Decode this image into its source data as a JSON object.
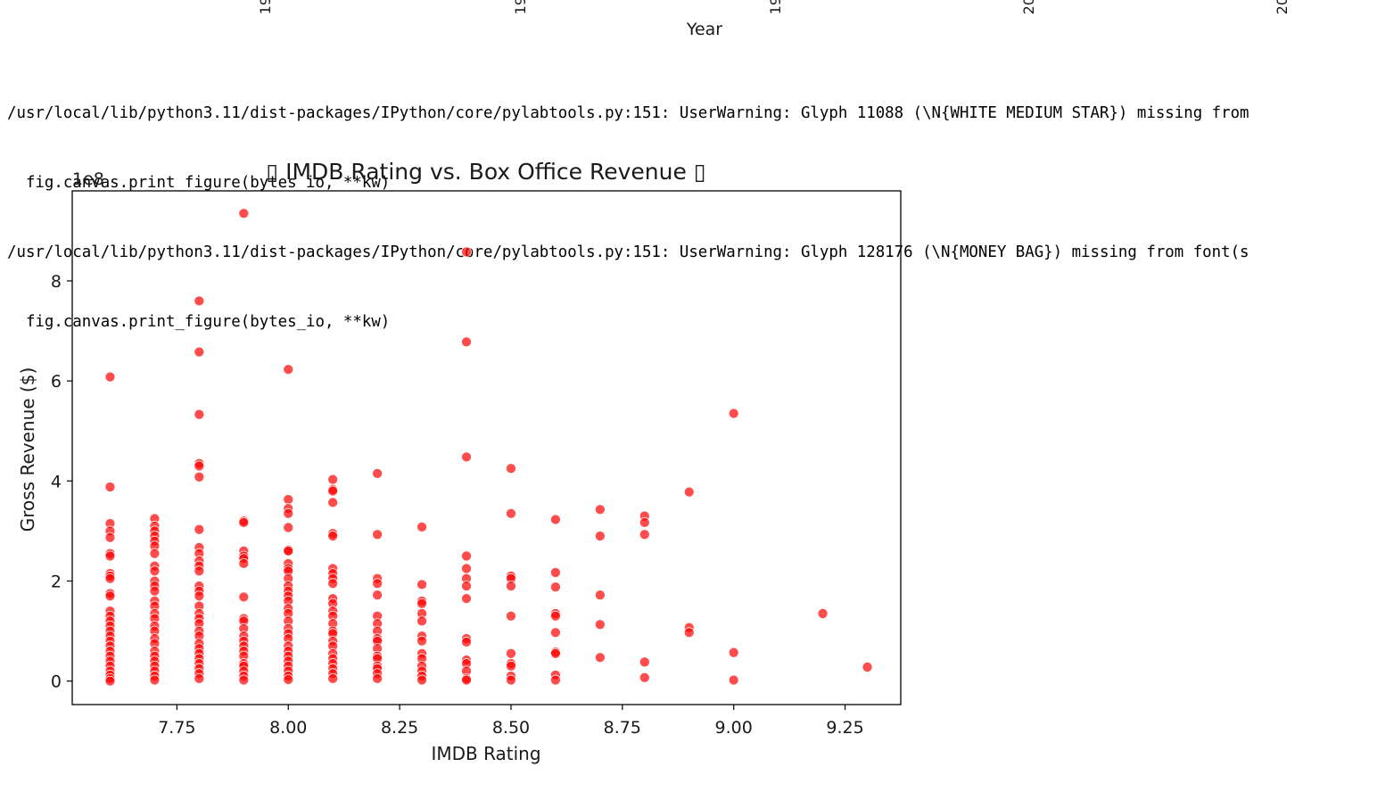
{
  "previous_output": {
    "x_tick_labels": [
      "19",
      "19",
      "19",
      "20",
      "20"
    ],
    "x_label": "Year"
  },
  "console": {
    "lines": [
      "/usr/local/lib/python3.11/dist-packages/IPython/core/pylabtools.py:151: UserWarning: Glyph 11088 (\\N{WHITE MEDIUM STAR}) missing from",
      "  fig.canvas.print_figure(bytes_io, **kw)",
      "/usr/local/lib/python3.11/dist-packages/IPython/core/pylabtools.py:151: UserWarning: Glyph 128176 (\\N{MONEY BAG}) missing from font(s",
      "  fig.canvas.print_figure(bytes_io, **kw)"
    ]
  },
  "chart_data": {
    "type": "scatter",
    "title": "▯ IMDB Rating vs. Box Office Revenue ▯",
    "xlabel": "IMDB Rating",
    "ylabel": "Gross Revenue ($)",
    "y_offset_label": "1e8",
    "xlim": [
      7.515,
      9.375
    ],
    "ylim": [
      -0.47,
      9.8
    ],
    "y_scale_note": "values in units of 1e8",
    "x_ticks": [
      7.75,
      8.0,
      8.25,
      8.5,
      8.75,
      9.0,
      9.25
    ],
    "x_tick_labels": [
      "7.75",
      "8.00",
      "8.25",
      "8.50",
      "8.75",
      "9.00",
      "9.25"
    ],
    "y_ticks": [
      0,
      2,
      4,
      6,
      8
    ],
    "y_tick_labels": [
      "0",
      "2",
      "4",
      "6",
      "8"
    ],
    "grid": false,
    "marker_color": "#ff0000",
    "marker_alpha": 0.7,
    "points": [
      [
        7.6,
        6.08
      ],
      [
        7.6,
        3.88
      ],
      [
        7.6,
        3.15
      ],
      [
        7.6,
        3.0
      ],
      [
        7.6,
        2.87
      ],
      [
        7.6,
        2.55
      ],
      [
        7.6,
        2.5
      ],
      [
        7.6,
        2.15
      ],
      [
        7.6,
        2.1
      ],
      [
        7.6,
        2.05
      ],
      [
        7.6,
        1.75
      ],
      [
        7.6,
        1.7
      ],
      [
        7.6,
        1.4
      ],
      [
        7.6,
        1.3
      ],
      [
        7.6,
        1.2
      ],
      [
        7.6,
        1.1
      ],
      [
        7.6,
        1.0
      ],
      [
        7.6,
        0.9
      ],
      [
        7.6,
        0.8
      ],
      [
        7.6,
        0.7
      ],
      [
        7.6,
        0.6
      ],
      [
        7.6,
        0.5
      ],
      [
        7.6,
        0.4
      ],
      [
        7.6,
        0.3
      ],
      [
        7.6,
        0.2
      ],
      [
        7.6,
        0.12
      ],
      [
        7.6,
        0.05
      ],
      [
        7.6,
        0.0
      ],
      [
        7.7,
        3.25
      ],
      [
        7.7,
        3.1
      ],
      [
        7.7,
        3.0
      ],
      [
        7.7,
        2.9
      ],
      [
        7.7,
        2.8
      ],
      [
        7.7,
        2.7
      ],
      [
        7.7,
        2.55
      ],
      [
        7.7,
        2.3
      ],
      [
        7.7,
        2.2
      ],
      [
        7.7,
        2.0
      ],
      [
        7.7,
        1.9
      ],
      [
        7.7,
        1.8
      ],
      [
        7.7,
        1.6
      ],
      [
        7.7,
        1.5
      ],
      [
        7.7,
        1.35
      ],
      [
        7.7,
        1.25
      ],
      [
        7.7,
        1.1
      ],
      [
        7.7,
        1.0
      ],
      [
        7.7,
        0.85
      ],
      [
        7.7,
        0.75
      ],
      [
        7.7,
        0.6
      ],
      [
        7.7,
        0.5
      ],
      [
        7.7,
        0.4
      ],
      [
        7.7,
        0.3
      ],
      [
        7.7,
        0.2
      ],
      [
        7.7,
        0.1
      ],
      [
        7.7,
        0.02
      ],
      [
        7.8,
        7.6
      ],
      [
        7.8,
        6.58
      ],
      [
        7.8,
        5.33
      ],
      [
        7.8,
        4.35
      ],
      [
        7.8,
        4.3
      ],
      [
        7.8,
        4.08
      ],
      [
        7.8,
        3.03
      ],
      [
        7.8,
        2.67
      ],
      [
        7.8,
        2.55
      ],
      [
        7.8,
        2.4
      ],
      [
        7.8,
        2.3
      ],
      [
        7.8,
        2.2
      ],
      [
        7.8,
        1.9
      ],
      [
        7.8,
        1.8
      ],
      [
        7.8,
        1.7
      ],
      [
        7.8,
        1.5
      ],
      [
        7.8,
        1.35
      ],
      [
        7.8,
        1.25
      ],
      [
        7.8,
        1.15
      ],
      [
        7.8,
        1.0
      ],
      [
        7.8,
        0.9
      ],
      [
        7.8,
        0.75
      ],
      [
        7.8,
        0.65
      ],
      [
        7.8,
        0.55
      ],
      [
        7.8,
        0.45
      ],
      [
        7.8,
        0.35
      ],
      [
        7.8,
        0.25
      ],
      [
        7.8,
        0.15
      ],
      [
        7.8,
        0.05
      ],
      [
        7.9,
        9.35
      ],
      [
        7.9,
        3.2
      ],
      [
        7.9,
        3.17
      ],
      [
        7.9,
        2.6
      ],
      [
        7.9,
        2.5
      ],
      [
        7.9,
        2.45
      ],
      [
        7.9,
        2.35
      ],
      [
        7.9,
        1.68
      ],
      [
        7.9,
        1.25
      ],
      [
        7.9,
        1.2
      ],
      [
        7.9,
        1.05
      ],
      [
        7.9,
        0.9
      ],
      [
        7.9,
        0.8
      ],
      [
        7.9,
        0.7
      ],
      [
        7.9,
        0.6
      ],
      [
        7.9,
        0.5
      ],
      [
        7.9,
        0.35
      ],
      [
        7.9,
        0.3
      ],
      [
        7.9,
        0.2
      ],
      [
        7.9,
        0.1
      ],
      [
        7.9,
        0.02
      ],
      [
        8.0,
        6.23
      ],
      [
        8.0,
        3.63
      ],
      [
        8.0,
        3.45
      ],
      [
        8.0,
        3.35
      ],
      [
        8.0,
        3.07
      ],
      [
        8.0,
        2.62
      ],
      [
        8.0,
        2.6
      ],
      [
        8.0,
        2.35
      ],
      [
        8.0,
        2.25
      ],
      [
        8.0,
        2.2
      ],
      [
        8.0,
        2.05
      ],
      [
        8.0,
        1.9
      ],
      [
        8.0,
        1.8
      ],
      [
        8.0,
        1.7
      ],
      [
        8.0,
        1.6
      ],
      [
        8.0,
        1.45
      ],
      [
        8.0,
        1.35
      ],
      [
        8.0,
        1.2
      ],
      [
        8.0,
        1.05
      ],
      [
        8.0,
        0.95
      ],
      [
        8.0,
        0.85
      ],
      [
        8.0,
        0.7
      ],
      [
        8.0,
        0.6
      ],
      [
        8.0,
        0.5
      ],
      [
        8.0,
        0.4
      ],
      [
        8.0,
        0.3
      ],
      [
        8.0,
        0.2
      ],
      [
        8.0,
        0.1
      ],
      [
        8.0,
        0.03
      ],
      [
        8.1,
        4.03
      ],
      [
        8.1,
        3.83
      ],
      [
        8.1,
        3.8
      ],
      [
        8.1,
        3.57
      ],
      [
        8.1,
        2.95
      ],
      [
        8.1,
        2.9
      ],
      [
        8.1,
        2.25
      ],
      [
        8.1,
        2.15
      ],
      [
        8.1,
        2.05
      ],
      [
        8.1,
        1.95
      ],
      [
        8.1,
        1.65
      ],
      [
        8.1,
        1.55
      ],
      [
        8.1,
        1.4
      ],
      [
        8.1,
        1.3
      ],
      [
        8.1,
        1.15
      ],
      [
        8.1,
        1.0
      ],
      [
        8.1,
        0.95
      ],
      [
        8.1,
        0.8
      ],
      [
        8.1,
        0.7
      ],
      [
        8.1,
        0.55
      ],
      [
        8.1,
        0.45
      ],
      [
        8.1,
        0.35
      ],
      [
        8.1,
        0.25
      ],
      [
        8.1,
        0.15
      ],
      [
        8.1,
        0.05
      ],
      [
        8.2,
        4.15
      ],
      [
        8.2,
        2.93
      ],
      [
        8.2,
        2.05
      ],
      [
        8.2,
        1.95
      ],
      [
        8.2,
        1.72
      ],
      [
        8.2,
        1.3
      ],
      [
        8.2,
        1.15
      ],
      [
        8.2,
        1.0
      ],
      [
        8.2,
        0.85
      ],
      [
        8.2,
        0.8
      ],
      [
        8.2,
        0.65
      ],
      [
        8.2,
        0.5
      ],
      [
        8.2,
        0.45
      ],
      [
        8.2,
        0.3
      ],
      [
        8.2,
        0.25
      ],
      [
        8.2,
        0.15
      ],
      [
        8.2,
        0.05
      ],
      [
        8.3,
        3.08
      ],
      [
        8.3,
        1.93
      ],
      [
        8.3,
        1.6
      ],
      [
        8.3,
        1.55
      ],
      [
        8.3,
        1.35
      ],
      [
        8.3,
        1.2
      ],
      [
        8.3,
        0.9
      ],
      [
        8.3,
        0.8
      ],
      [
        8.3,
        0.55
      ],
      [
        8.3,
        0.45
      ],
      [
        8.3,
        0.3
      ],
      [
        8.3,
        0.2
      ],
      [
        8.3,
        0.1
      ],
      [
        8.3,
        0.02
      ],
      [
        8.4,
        8.58
      ],
      [
        8.4,
        6.78
      ],
      [
        8.4,
        4.48
      ],
      [
        8.4,
        2.5
      ],
      [
        8.4,
        2.25
      ],
      [
        8.4,
        2.05
      ],
      [
        8.4,
        1.9
      ],
      [
        8.4,
        1.65
      ],
      [
        8.4,
        0.85
      ],
      [
        8.4,
        0.78
      ],
      [
        8.4,
        0.42
      ],
      [
        8.4,
        0.35
      ],
      [
        8.4,
        0.2
      ],
      [
        8.4,
        0.05
      ],
      [
        8.4,
        0.02
      ],
      [
        8.5,
        4.25
      ],
      [
        8.5,
        3.35
      ],
      [
        8.5,
        2.1
      ],
      [
        8.5,
        2.05
      ],
      [
        8.5,
        1.9
      ],
      [
        8.5,
        1.3
      ],
      [
        8.5,
        0.55
      ],
      [
        8.5,
        0.35
      ],
      [
        8.5,
        0.3
      ],
      [
        8.5,
        0.1
      ],
      [
        8.5,
        0.02
      ],
      [
        8.6,
        3.23
      ],
      [
        8.6,
        2.17
      ],
      [
        8.6,
        1.88
      ],
      [
        8.6,
        1.35
      ],
      [
        8.6,
        1.3
      ],
      [
        8.6,
        0.97
      ],
      [
        8.6,
        0.58
      ],
      [
        8.6,
        0.55
      ],
      [
        8.6,
        0.12
      ],
      [
        8.6,
        0.02
      ],
      [
        8.7,
        3.43
      ],
      [
        8.7,
        2.9
      ],
      [
        8.7,
        1.72
      ],
      [
        8.7,
        1.13
      ],
      [
        8.7,
        0.47
      ],
      [
        8.8,
        3.3
      ],
      [
        8.8,
        3.17
      ],
      [
        8.8,
        2.93
      ],
      [
        8.8,
        0.38
      ],
      [
        8.8,
        0.07
      ],
      [
        8.9,
        3.78
      ],
      [
        8.9,
        1.07
      ],
      [
        8.9,
        0.97
      ],
      [
        9.0,
        5.35
      ],
      [
        9.0,
        0.57
      ],
      [
        9.0,
        0.02
      ],
      [
        9.2,
        1.35
      ],
      [
        9.3,
        0.28
      ]
    ]
  }
}
